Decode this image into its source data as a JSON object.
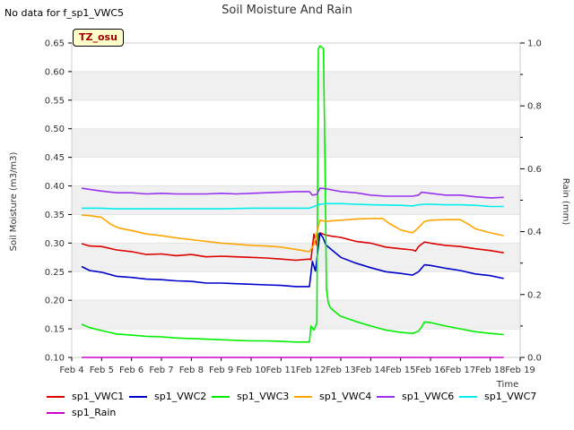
{
  "header": {
    "no_data_text": "No data for f_sp1_VWC5",
    "title": "Soil Moisture And Rain",
    "site_tag": "TZ_osu"
  },
  "chart_data": {
    "type": "line",
    "title": "Soil Moisture And Rain",
    "xlabel": "Time",
    "ylabel": "Soil Moisture (m3/m3)",
    "y2label": "Rain (mm)",
    "x_ticks": [
      "Feb 4",
      "Feb 5",
      "Feb 6",
      "Feb 7",
      "Feb 8",
      "Feb 9",
      "Feb 10",
      "Feb 11",
      "Feb 12",
      "Feb 13",
      "Feb 14",
      "Feb 15",
      "Feb 16",
      "Feb 17",
      "Feb 18",
      "Feb 19"
    ],
    "xlim": [
      4,
      19
    ],
    "ylim": [
      0.1,
      0.65
    ],
    "y_ticks": [
      "0.10",
      "0.15",
      "0.20",
      "0.25",
      "0.30",
      "0.35",
      "0.40",
      "0.45",
      "0.50",
      "0.55",
      "0.60",
      "0.65"
    ],
    "y2lim": [
      0.0,
      1.0
    ],
    "y2_ticks": [
      "0.0",
      "0.2",
      "0.4",
      "0.6",
      "0.8",
      "1.0"
    ],
    "grid": "horizontal bands",
    "legend_position": "bottom",
    "series": [
      {
        "name": "sp1_VWC1",
        "color": "#dd0000",
        "axis": "left",
        "x": [
          4.33,
          4.6,
          5.0,
          5.5,
          6.0,
          6.5,
          7.0,
          7.5,
          8.0,
          8.5,
          9.0,
          9.5,
          10.0,
          10.5,
          11.0,
          11.5,
          11.95,
          12.0,
          12.1,
          12.2,
          12.25,
          12.3,
          12.4,
          12.5,
          12.7,
          13.0,
          13.5,
          14.0,
          14.5,
          15.0,
          15.4,
          15.5,
          15.6,
          15.8,
          16.0,
          16.5,
          17.0,
          17.5,
          18.0,
          18.45
        ],
        "y": [
          0.299,
          0.295,
          0.294,
          0.288,
          0.285,
          0.28,
          0.281,
          0.278,
          0.28,
          0.276,
          0.277,
          0.276,
          0.275,
          0.274,
          0.272,
          0.27,
          0.272,
          0.271,
          0.316,
          0.296,
          0.315,
          0.318,
          0.316,
          0.314,
          0.312,
          0.31,
          0.303,
          0.3,
          0.293,
          0.29,
          0.288,
          0.286,
          0.294,
          0.302,
          0.3,
          0.296,
          0.294,
          0.29,
          0.287,
          0.283
        ]
      },
      {
        "name": "sp1_VWC2",
        "color": "#0000cc",
        "axis": "left",
        "x": [
          4.33,
          4.6,
          5.0,
          5.5,
          6.0,
          6.5,
          7.0,
          7.5,
          8.0,
          8.5,
          9.0,
          9.5,
          10.0,
          10.5,
          11.0,
          11.5,
          11.95,
          12.05,
          12.15,
          12.3,
          12.4,
          12.5,
          12.7,
          13.0,
          13.5,
          14.0,
          14.5,
          15.0,
          15.4,
          15.6,
          15.8,
          16.0,
          16.5,
          17.0,
          17.5,
          18.0,
          18.45
        ],
        "y": [
          0.259,
          0.252,
          0.249,
          0.242,
          0.24,
          0.237,
          0.236,
          0.234,
          0.233,
          0.23,
          0.23,
          0.229,
          0.228,
          0.227,
          0.226,
          0.224,
          0.224,
          0.268,
          0.251,
          0.317,
          0.31,
          0.297,
          0.288,
          0.275,
          0.265,
          0.257,
          0.25,
          0.247,
          0.244,
          0.25,
          0.262,
          0.261,
          0.256,
          0.252,
          0.246,
          0.243,
          0.238
        ]
      },
      {
        "name": "sp1_VWC3",
        "color": "#00ee00",
        "axis": "left",
        "x": [
          4.33,
          4.6,
          5.0,
          5.5,
          6.0,
          6.5,
          7.0,
          7.5,
          8.0,
          8.5,
          9.0,
          9.5,
          10.0,
          10.5,
          11.0,
          11.5,
          11.95,
          12.0,
          12.1,
          12.2,
          12.25,
          12.3,
          12.42,
          12.48,
          12.52,
          12.58,
          12.65,
          12.8,
          13.0,
          13.5,
          14.0,
          14.5,
          15.0,
          15.4,
          15.6,
          15.7,
          15.8,
          16.0,
          16.5,
          17.0,
          17.5,
          18.0,
          18.45
        ],
        "y": [
          0.158,
          0.152,
          0.147,
          0.141,
          0.139,
          0.137,
          0.136,
          0.134,
          0.133,
          0.132,
          0.131,
          0.13,
          0.129,
          0.129,
          0.128,
          0.127,
          0.127,
          0.155,
          0.148,
          0.16,
          0.64,
          0.645,
          0.64,
          0.4,
          0.22,
          0.196,
          0.187,
          0.18,
          0.172,
          0.163,
          0.155,
          0.148,
          0.144,
          0.142,
          0.146,
          0.153,
          0.162,
          0.161,
          0.155,
          0.15,
          0.145,
          0.142,
          0.14
        ]
      },
      {
        "name": "sp1_VWC4",
        "color": "#ffa500",
        "axis": "left",
        "x": [
          4.33,
          4.6,
          5.0,
          5.3,
          5.6,
          6.0,
          6.5,
          7.0,
          7.5,
          8.0,
          8.5,
          9.0,
          9.5,
          10.0,
          10.5,
          11.0,
          11.5,
          11.95,
          12.1,
          12.3,
          12.5,
          13.0,
          13.5,
          14.0,
          14.4,
          14.6,
          15.0,
          15.4,
          15.6,
          15.8,
          16.0,
          16.5,
          17.0,
          17.3,
          17.5,
          18.0,
          18.45
        ],
        "y": [
          0.349,
          0.348,
          0.345,
          0.333,
          0.326,
          0.322,
          0.316,
          0.313,
          0.309,
          0.306,
          0.303,
          0.3,
          0.298,
          0.296,
          0.295,
          0.293,
          0.289,
          0.285,
          0.297,
          0.34,
          0.338,
          0.34,
          0.342,
          0.343,
          0.343,
          0.335,
          0.323,
          0.318,
          0.327,
          0.338,
          0.34,
          0.341,
          0.341,
          0.332,
          0.325,
          0.318,
          0.313
        ]
      },
      {
        "name": "sp1_VWC6",
        "color": "#9933ee",
        "axis": "left",
        "x": [
          4.33,
          4.6,
          5.0,
          5.5,
          6.0,
          6.5,
          7.0,
          7.5,
          8.0,
          8.5,
          9.0,
          9.5,
          10.0,
          10.5,
          11.0,
          11.5,
          11.95,
          12.05,
          12.2,
          12.3,
          12.5,
          13.0,
          13.5,
          14.0,
          14.5,
          15.0,
          15.4,
          15.6,
          15.7,
          16.0,
          16.5,
          17.0,
          17.5,
          18.0,
          18.45
        ],
        "y": [
          0.396,
          0.394,
          0.391,
          0.388,
          0.388,
          0.386,
          0.387,
          0.386,
          0.386,
          0.386,
          0.387,
          0.386,
          0.387,
          0.388,
          0.389,
          0.39,
          0.39,
          0.384,
          0.385,
          0.396,
          0.395,
          0.39,
          0.388,
          0.384,
          0.382,
          0.382,
          0.382,
          0.384,
          0.389,
          0.387,
          0.384,
          0.384,
          0.381,
          0.379,
          0.38
        ]
      },
      {
        "name": "sp1_VWC7",
        "color": "#00eeee",
        "axis": "left",
        "x": [
          4.33,
          5.0,
          5.5,
          6.0,
          7.0,
          8.0,
          9.0,
          10.0,
          11.0,
          11.5,
          11.95,
          12.1,
          12.3,
          12.5,
          13.0,
          13.5,
          14.0,
          15.0,
          15.4,
          15.6,
          15.8,
          16.0,
          16.5,
          17.0,
          17.5,
          18.0,
          18.45
        ],
        "y": [
          0.361,
          0.361,
          0.36,
          0.36,
          0.36,
          0.36,
          0.36,
          0.361,
          0.361,
          0.361,
          0.361,
          0.364,
          0.368,
          0.369,
          0.369,
          0.368,
          0.367,
          0.366,
          0.365,
          0.367,
          0.368,
          0.368,
          0.367,
          0.367,
          0.366,
          0.364,
          0.364
        ]
      },
      {
        "name": "sp1_Rain",
        "color": "#cc00cc",
        "axis": "right",
        "x": [
          4.33,
          18.45
        ],
        "y": [
          0.0,
          0.0
        ]
      }
    ]
  }
}
